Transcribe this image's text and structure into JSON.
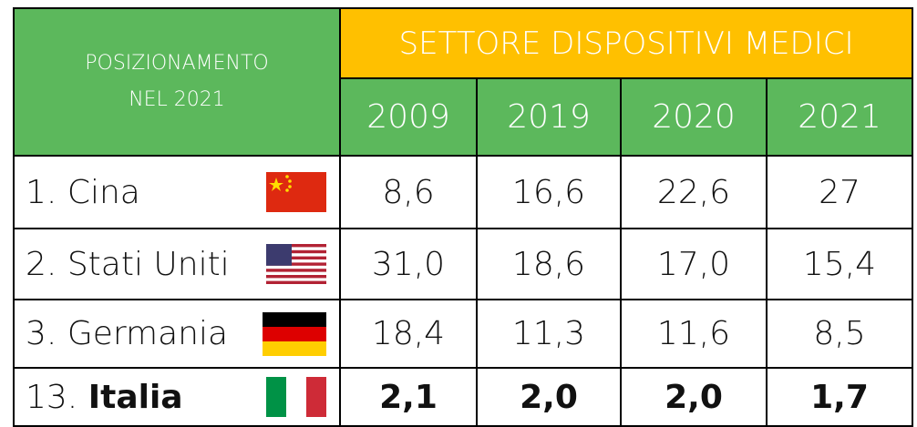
{
  "header": {
    "position_title": [
      "POSIZIONAMENTO",
      "NEL 2021"
    ],
    "sector_title": "SETTORE DISPOSITIVI MEDICI",
    "years": [
      "2009",
      "2019",
      "2020",
      "2021"
    ]
  },
  "rows": [
    {
      "rank": "1.",
      "name": "Cina",
      "values": [
        "8,6",
        "16,6",
        "22,6",
        "27"
      ]
    },
    {
      "rank": "2.",
      "name": "Stati Uniti",
      "values": [
        "31,0",
        "18,6",
        "17,0",
        "15,4"
      ]
    },
    {
      "rank": "3.",
      "name": "Germania",
      "values": [
        "18,4",
        "11,3",
        "11,6",
        "8,5"
      ]
    },
    {
      "rank": "13.",
      "name": "Italia",
      "values": [
        "2,1",
        "2,0",
        "2,0",
        "1,7"
      ]
    }
  ]
}
